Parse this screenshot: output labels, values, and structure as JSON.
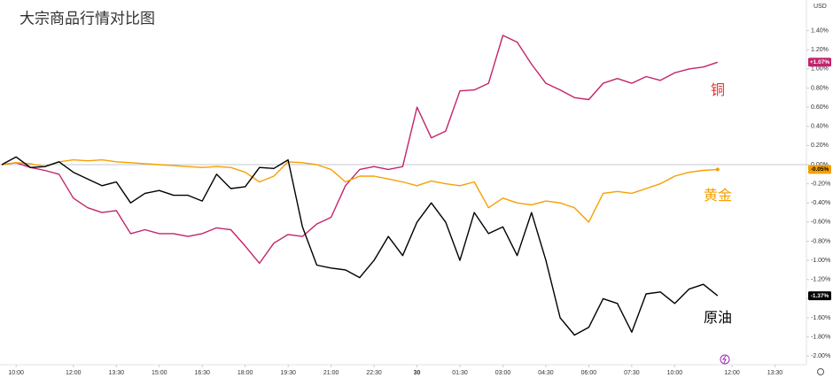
{
  "chart_data": {
    "type": "line",
    "title": "大宗商品行情对比图",
    "currency": "USD",
    "x": [
      0,
      2,
      4,
      6,
      8,
      10,
      12,
      14,
      16,
      18,
      20,
      22,
      24,
      26,
      28,
      30,
      32,
      34,
      36,
      38,
      40,
      42,
      44,
      46,
      48,
      50,
      52,
      54,
      56,
      58,
      60,
      62,
      64,
      66,
      68,
      70,
      72,
      74,
      76,
      78,
      80,
      82,
      84,
      86,
      88,
      90,
      92,
      94,
      96,
      98,
      100
    ],
    "xlim": [
      -0.25,
      112.4
    ],
    "xticks": [
      {
        "value": 2,
        "label": "10:00"
      },
      {
        "value": 10,
        "label": "12:00"
      },
      {
        "value": 16,
        "label": "13:30"
      },
      {
        "value": 22,
        "label": "15:00"
      },
      {
        "value": 28,
        "label": "16:30"
      },
      {
        "value": 34,
        "label": "18:00"
      },
      {
        "value": 40,
        "label": "19:30"
      },
      {
        "value": 46,
        "label": "21:00"
      },
      {
        "value": 52,
        "label": "22:30"
      },
      {
        "value": 58,
        "label": "30"
      },
      {
        "value": 64,
        "label": "01:30"
      },
      {
        "value": 70,
        "label": "03:00"
      },
      {
        "value": 76,
        "label": "04:30"
      },
      {
        "value": 82,
        "label": "06:00"
      },
      {
        "value": 88,
        "label": "07:30"
      },
      {
        "value": 94,
        "label": "10:00"
      },
      {
        "value": 102,
        "label": "12:00"
      },
      {
        "value": 108,
        "label": "13:30"
      }
    ],
    "ylim": [
      -2.09,
      1.72
    ],
    "yticks": [
      {
        "value": 1.4,
        "label": "1.40%"
      },
      {
        "value": 1.2,
        "label": "1.20%"
      },
      {
        "value": 1.0,
        "label": "1.00%"
      },
      {
        "value": 0.8,
        "label": "0.80%"
      },
      {
        "value": 0.6,
        "label": "0.60%"
      },
      {
        "value": 0.4,
        "label": "0.40%"
      },
      {
        "value": 0.2,
        "label": "0.20%"
      },
      {
        "value": 0,
        "label": "0.00%"
      },
      {
        "value": -0.2,
        "label": "-0.20%"
      },
      {
        "value": -0.4,
        "label": "-0.40%"
      },
      {
        "value": -0.6,
        "label": "-0.60%"
      },
      {
        "value": -0.8,
        "label": "-0.80%"
      },
      {
        "value": -1.0,
        "label": "-1.00%"
      },
      {
        "value": -1.2,
        "label": "-1.20%"
      },
      {
        "value": -1.4,
        "label": "-1.40%"
      },
      {
        "value": -1.6,
        "label": "-1.60%"
      },
      {
        "value": -1.8,
        "label": "-1.80%"
      },
      {
        "value": -2.0,
        "label": "-2.00%"
      }
    ],
    "baseline": 0,
    "grid": false,
    "series": [
      {
        "name": "铜",
        "color": "#c2246b",
        "badge_text": "#ffffff",
        "last_label": "+1.07%",
        "values": [
          0,
          0.02,
          -0.03,
          -0.06,
          -0.1,
          -0.35,
          -0.45,
          -0.5,
          -0.48,
          -0.72,
          -0.68,
          -0.72,
          -0.72,
          -0.75,
          -0.72,
          -0.66,
          -0.68,
          -0.85,
          -1.03,
          -0.82,
          -0.73,
          -0.75,
          -0.62,
          -0.55,
          -0.22,
          -0.05,
          -0.02,
          -0.05,
          -0.02,
          0.6,
          0.28,
          0.35,
          0.77,
          0.78,
          0.85,
          1.35,
          1.28,
          1.05,
          0.85,
          0.78,
          0.7,
          0.68,
          0.85,
          0.9,
          0.85,
          0.92,
          0.88,
          0.96,
          1.0,
          1.02,
          1.07
        ]
      },
      {
        "name": "黄金",
        "color": "#f5a000",
        "badge_text": "#000000",
        "last_label": "-0.05%",
        "values": [
          0,
          0.02,
          0.01,
          -0.02,
          0.03,
          0.05,
          0.04,
          0.05,
          0.03,
          0.02,
          0.01,
          0,
          -0.01,
          -0.02,
          -0.03,
          -0.02,
          -0.03,
          -0.08,
          -0.18,
          -0.12,
          0.03,
          0.02,
          0,
          -0.05,
          -0.18,
          -0.12,
          -0.12,
          -0.15,
          -0.18,
          -0.22,
          -0.17,
          -0.2,
          -0.22,
          -0.18,
          -0.45,
          -0.35,
          -0.4,
          -0.42,
          -0.38,
          -0.4,
          -0.45,
          -0.6,
          -0.3,
          -0.28,
          -0.3,
          -0.25,
          -0.2,
          -0.12,
          -0.08,
          -0.06,
          -0.05
        ]
      },
      {
        "name": "原油",
        "color": "#000000",
        "badge_text": "#ffffff",
        "last_label": "-1.37%",
        "values": [
          0,
          0.08,
          -0.03,
          -0.02,
          0.03,
          -0.08,
          -0.15,
          -0.22,
          -0.18,
          -0.4,
          -0.3,
          -0.27,
          -0.32,
          -0.32,
          -0.38,
          -0.1,
          -0.25,
          -0.23,
          -0.03,
          -0.04,
          0.05,
          -0.65,
          -1.05,
          -1.08,
          -1.1,
          -1.18,
          -1.0,
          -0.75,
          -0.95,
          -0.6,
          -0.4,
          -0.6,
          -1.0,
          -0.5,
          -0.72,
          -0.65,
          -0.95,
          -0.5,
          -1.0,
          -1.6,
          -1.78,
          -1.7,
          -1.4,
          -1.45,
          -1.75,
          -1.35,
          -1.33,
          -1.45,
          -1.3,
          -1.25,
          -1.37
        ]
      }
    ]
  }
}
